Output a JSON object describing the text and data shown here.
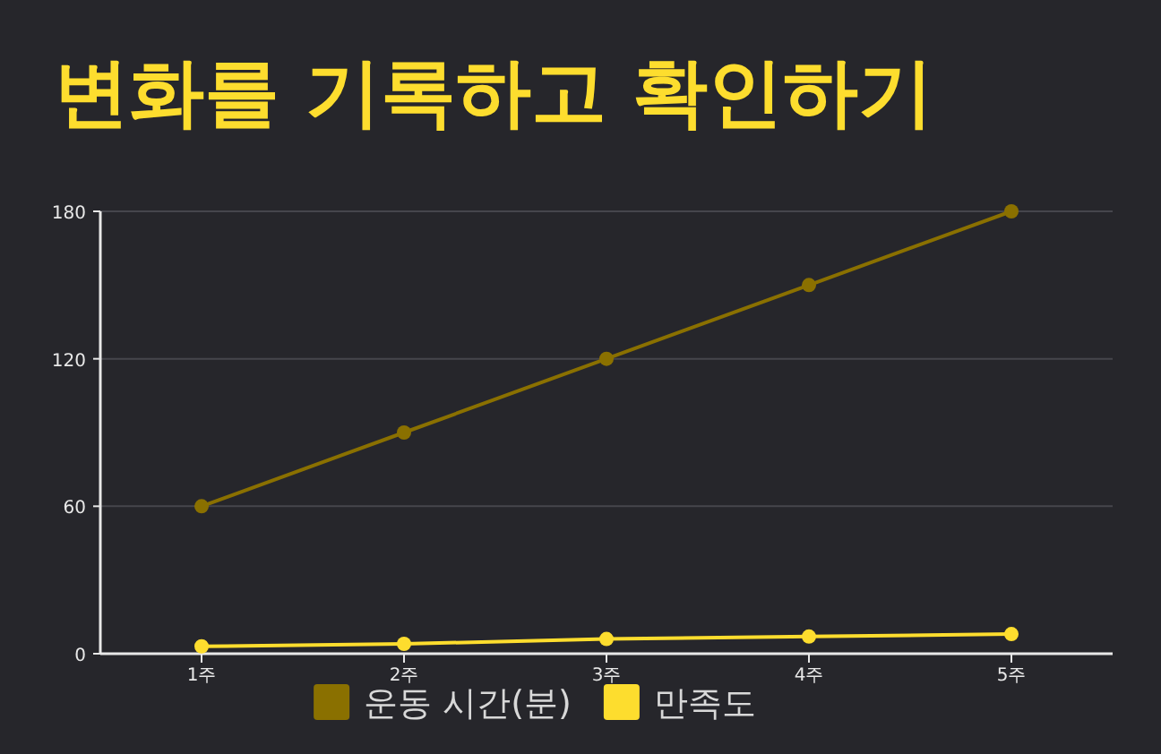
{
  "chart_data": {
    "type": "line",
    "title": "변화를 기록하고 확인하기",
    "categories": [
      "1주",
      "2주",
      "3주",
      "4주",
      "5주"
    ],
    "series": [
      {
        "name": "운동 시간(분)",
        "color": "#8a7000",
        "values": [
          60,
          90,
          120,
          150,
          180
        ]
      },
      {
        "name": "만족도",
        "color": "#fddd2e",
        "values": [
          3,
          4,
          6,
          7,
          8
        ]
      }
    ],
    "ylim": [
      0,
      180
    ],
    "yticks": [
      0,
      60,
      120,
      180
    ],
    "grid": "y",
    "legend": "bottom",
    "marker": "circle"
  }
}
